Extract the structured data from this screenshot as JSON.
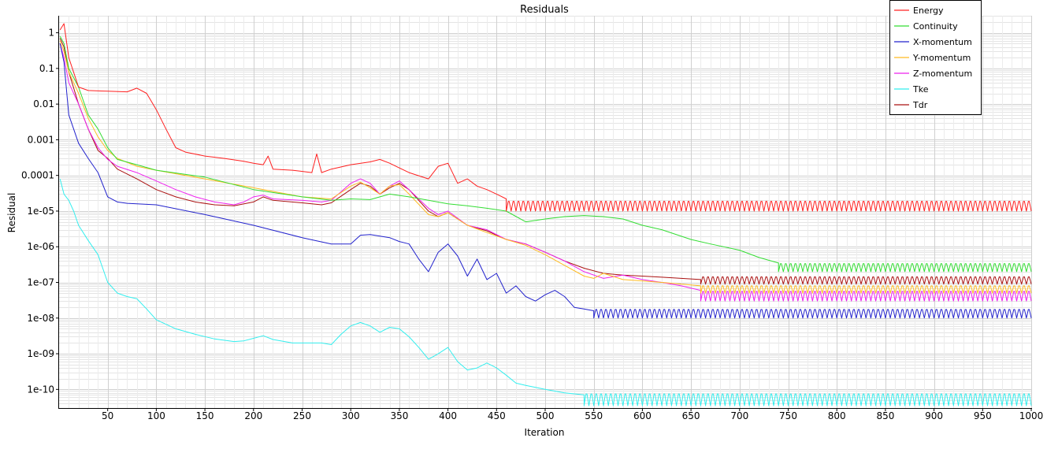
{
  "chart_data": {
    "type": "line",
    "title": "Residuals",
    "xlabel": "Iteration",
    "ylabel": "Residual",
    "xlim": [
      0,
      1000
    ],
    "ylim": [
      3e-11,
      3
    ],
    "yscale": "log",
    "grid": true,
    "legend_position": "top-right",
    "x_ticks": [
      50,
      100,
      150,
      200,
      250,
      300,
      350,
      400,
      450,
      500,
      550,
      600,
      650,
      700,
      750,
      800,
      850,
      900,
      950,
      1000
    ],
    "x_tick_labels": [
      "50",
      "100",
      "150",
      "200",
      "250",
      "300",
      "350",
      "400",
      "450",
      "500",
      "550",
      "600",
      "650",
      "700",
      "750",
      "800",
      "850",
      "900",
      "950",
      "1000"
    ],
    "y_ticks": [
      1e-10,
      1e-09,
      1e-08,
      1e-07,
      1e-06,
      1e-05,
      0.0001,
      0.001,
      0.01,
      0.1,
      1
    ],
    "y_tick_labels": [
      "1e-10",
      "1e-09",
      "1e-08",
      "1e-07",
      "1e-06",
      "1e-05",
      "0.0001",
      "0.001",
      "0.01",
      "0.1",
      "1"
    ],
    "series": [
      {
        "name": "Energy",
        "color": "#ff2020",
        "x": [
          1,
          5,
          10,
          20,
          30,
          50,
          70,
          80,
          90,
          100,
          110,
          120,
          130,
          150,
          170,
          190,
          200,
          210,
          215,
          220,
          240,
          260,
          265,
          270,
          280,
          300,
          320,
          330,
          340,
          360,
          380,
          390,
          400,
          410,
          420,
          430,
          440,
          450,
          460
        ],
        "y": [
          1.2,
          1.8,
          0.2,
          0.03,
          0.024,
          0.023,
          0.022,
          0.028,
          0.02,
          0.007,
          0.002,
          0.0006,
          0.00045,
          0.00035,
          0.0003,
          0.00025,
          0.00022,
          0.0002,
          0.00035,
          0.00015,
          0.00014,
          0.00012,
          0.0004,
          0.00012,
          0.00015,
          0.0002,
          0.00024,
          0.00028,
          0.00022,
          0.00012,
          8e-05,
          0.00018,
          0.00022,
          6e-05,
          8e-05,
          5e-05,
          4e-05,
          3e-05,
          2.2e-05
        ],
        "osc": {
          "from": 460,
          "to": 1000,
          "low": 1e-05,
          "high": 2.2e-05,
          "period": 5
        }
      },
      {
        "name": "Continuity",
        "color": "#33dd33",
        "x": [
          1,
          5,
          10,
          20,
          30,
          40,
          50,
          60,
          80,
          100,
          150,
          200,
          250,
          280,
          300,
          320,
          340,
          360,
          380,
          400,
          420,
          440,
          460,
          480,
          500,
          520,
          540,
          560,
          580,
          600,
          620,
          650,
          670,
          700,
          720,
          740
        ],
        "y": [
          0.8,
          0.5,
          0.1,
          0.03,
          0.005,
          0.002,
          0.0006,
          0.00028,
          0.0002,
          0.00014,
          9e-05,
          4e-05,
          2.5e-05,
          2e-05,
          2.2e-05,
          2.1e-05,
          3e-05,
          2.5e-05,
          2e-05,
          1.6e-05,
          1.4e-05,
          1.2e-05,
          1e-05,
          5e-06,
          6e-06,
          7e-06,
          7.5e-06,
          7e-06,
          6e-06,
          4e-06,
          3e-06,
          1.6e-06,
          1.2e-06,
          8e-07,
          5e-07,
          3.5e-07
        ],
        "osc": {
          "from": 740,
          "to": 1000,
          "low": 2e-07,
          "high": 3.8e-07,
          "period": 5
        }
      },
      {
        "name": "X-momentum",
        "color": "#2222cc",
        "x": [
          1,
          5,
          10,
          20,
          30,
          40,
          50,
          60,
          70,
          80,
          100,
          150,
          200,
          250,
          280,
          300,
          310,
          320,
          340,
          350,
          360,
          370,
          380,
          390,
          400,
          410,
          420,
          430,
          440,
          450,
          460,
          470,
          480,
          490,
          500,
          510,
          520,
          530,
          540,
          550
        ],
        "y": [
          0.5,
          0.15,
          0.005,
          0.0008,
          0.0003,
          0.00012,
          2.5e-05,
          1.8e-05,
          1.65e-05,
          1.6e-05,
          1.5e-05,
          8e-06,
          4e-06,
          1.8e-06,
          1.2e-06,
          1.2e-06,
          2.1e-06,
          2.2e-06,
          1.8e-06,
          1.4e-06,
          1.2e-06,
          4.5e-07,
          2e-07,
          7e-07,
          1.2e-06,
          5.5e-07,
          1.5e-07,
          4.5e-07,
          1.2e-07,
          1.8e-07,
          5e-08,
          8e-08,
          4e-08,
          3e-08,
          4.5e-08,
          6e-08,
          4e-08,
          2e-08,
          1.8e-08,
          1.6e-08
        ],
        "osc": {
          "from": 550,
          "to": 1000,
          "low": 1e-08,
          "high": 2e-08,
          "period": 5
        }
      },
      {
        "name": "Y-momentum",
        "color": "#ffbb22",
        "x": [
          1,
          5,
          10,
          20,
          30,
          40,
          50,
          60,
          80,
          100,
          150,
          200,
          250,
          280,
          300,
          310,
          320,
          330,
          340,
          350,
          360,
          380,
          390,
          400,
          420,
          440,
          460,
          480,
          500,
          520,
          540,
          550,
          560,
          580,
          600,
          620,
          640,
          660
        ],
        "y": [
          0.6,
          0.3,
          0.08,
          0.02,
          0.004,
          0.0012,
          0.0005,
          0.0003,
          0.00018,
          0.00014,
          8e-05,
          4.5e-05,
          2.5e-05,
          2.2e-05,
          5e-05,
          6.5e-05,
          4.5e-05,
          3e-05,
          5e-05,
          5.5e-05,
          3e-05,
          8e-06,
          7e-06,
          9e-06,
          4e-06,
          2.5e-06,
          1.6e-06,
          1.1e-06,
          6e-07,
          3e-07,
          1.5e-07,
          1.3e-07,
          1.8e-07,
          1.2e-07,
          1.1e-07,
          1e-07,
          9e-08,
          8e-08
        ],
        "osc": {
          "from": 660,
          "to": 1000,
          "low": 5e-08,
          "high": 9e-08,
          "period": 5
        }
      },
      {
        "name": "Z-momentum",
        "color": "#ee22ee",
        "x": [
          1,
          5,
          10,
          20,
          30,
          40,
          50,
          60,
          80,
          100,
          120,
          140,
          160,
          180,
          190,
          200,
          210,
          220,
          250,
          270,
          280,
          300,
          310,
          320,
          330,
          340,
          350,
          360,
          380,
          390,
          400,
          420,
          440,
          460,
          480,
          500,
          520,
          540,
          560,
          580,
          600,
          620,
          640,
          660
        ],
        "y": [
          0.5,
          0.2,
          0.04,
          0.01,
          0.002,
          0.0006,
          0.00028,
          0.00018,
          0.00012,
          7e-05,
          4e-05,
          2.5e-05,
          1.8e-05,
          1.5e-05,
          1.8e-05,
          2.5e-05,
          2.8e-05,
          2.2e-05,
          2e-05,
          1.8e-05,
          2e-05,
          6e-05,
          8e-05,
          6e-05,
          3e-05,
          5e-05,
          7e-05,
          4e-05,
          1.2e-05,
          8e-06,
          1e-05,
          4e-06,
          3e-06,
          1.6e-06,
          1.2e-06,
          7e-07,
          4e-07,
          2e-07,
          1.3e-07,
          1.6e-07,
          1.2e-07,
          1e-07,
          8e-08,
          6e-08
        ],
        "osc": {
          "from": 660,
          "to": 1000,
          "low": 3e-08,
          "high": 6.5e-08,
          "period": 5
        }
      },
      {
        "name": "Tke",
        "color": "#33eeee",
        "x": [
          1,
          5,
          10,
          15,
          20,
          30,
          40,
          50,
          60,
          70,
          80,
          90,
          100,
          120,
          140,
          160,
          180,
          190,
          200,
          210,
          220,
          240,
          260,
          270,
          280,
          290,
          300,
          310,
          320,
          330,
          340,
          350,
          360,
          370,
          380,
          390,
          400,
          410,
          420,
          430,
          440,
          450,
          460,
          470,
          480,
          500,
          520,
          540
        ],
        "y": [
          8e-05,
          3e-05,
          2e-05,
          1e-05,
          4e-06,
          1.5e-06,
          6e-07,
          1e-07,
          5e-08,
          4e-08,
          3.5e-08,
          1.8e-08,
          9e-09,
          5e-09,
          3.5e-09,
          2.6e-09,
          2.2e-09,
          2.3e-09,
          2.7e-09,
          3.2e-09,
          2.5e-09,
          2e-09,
          2e-09,
          2e-09,
          1.8e-09,
          3.5e-09,
          6e-09,
          7.5e-09,
          6e-09,
          4e-09,
          5.5e-09,
          5e-09,
          3e-09,
          1.5e-09,
          7e-10,
          1e-09,
          1.5e-09,
          6e-10,
          3.5e-10,
          4e-10,
          5.5e-10,
          4e-10,
          2.5e-10,
          1.5e-10,
          1.3e-10,
          1e-10,
          8e-11,
          7e-11
        ],
        "osc": {
          "from": 540,
          "to": 1000,
          "low": 3.5e-11,
          "high": 9e-11,
          "period": 5
        }
      },
      {
        "name": "Tdr",
        "color": "#aa1111",
        "x": [
          1,
          5,
          10,
          20,
          30,
          40,
          50,
          60,
          80,
          100,
          120,
          140,
          160,
          180,
          200,
          210,
          220,
          250,
          270,
          280,
          300,
          310,
          320,
          330,
          340,
          350,
          360,
          380,
          390,
          400,
          420,
          440,
          460,
          480,
          500,
          520,
          540,
          560,
          580,
          600,
          620,
          640,
          660
        ],
        "y": [
          0.7,
          0.4,
          0.08,
          0.01,
          0.002,
          0.0005,
          0.0003,
          0.00015,
          8e-05,
          4e-05,
          2.5e-05,
          1.8e-05,
          1.5e-05,
          1.4e-05,
          1.8e-05,
          2.5e-05,
          2e-05,
          1.7e-05,
          1.5e-05,
          1.7e-05,
          4e-05,
          6e-05,
          5e-05,
          3e-05,
          4.5e-05,
          6e-05,
          4e-05,
          1e-05,
          7e-06,
          9e-06,
          4e-06,
          2.8e-06,
          1.6e-06,
          1.2e-06,
          7e-07,
          4e-07,
          2.5e-07,
          1.8e-07,
          1.6e-07,
          1.5e-07,
          1.4e-07,
          1.3e-07,
          1.2e-07
        ],
        "osc": {
          "from": 660,
          "to": 1000,
          "low": 9e-08,
          "high": 1.6e-07,
          "period": 5
        }
      }
    ]
  }
}
